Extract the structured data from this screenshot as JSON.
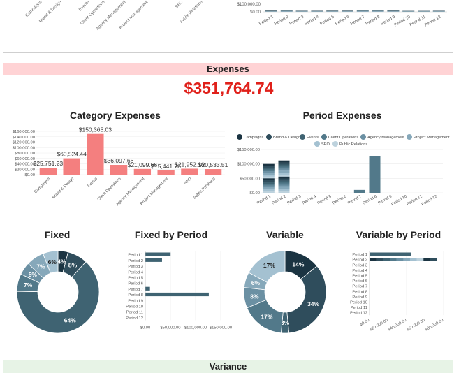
{
  "colors": {
    "expenses_band": "#ffd3d5",
    "variance_band": "#e7f3e6",
    "expense_total": "#e0201a",
    "category_bar": "#f47f7f",
    "palette": [
      "#1b3442",
      "#2f4d5c",
      "#3f6372",
      "#52798a",
      "#6b90a3",
      "#86a8ba",
      "#a4c1d1",
      "#bdd2dd"
    ]
  },
  "expenses": {
    "title": "Expenses",
    "total": "$351,764.74"
  },
  "variance": {
    "title": "Variance"
  },
  "charts": {
    "category_title": "Category Expenses",
    "period_title": "Period Expenses",
    "fixed_title": "Fixed",
    "fixed_by_period_title": "Fixed by Period",
    "variable_title": "Variable",
    "variable_by_period_title": "Variable by Period"
  },
  "chart_data": [
    {
      "id": "top-partial",
      "type": "bar",
      "stacked": true,
      "categories": [
        "Period 1",
        "Period 2",
        "Period 3",
        "Period 4",
        "Period 5",
        "Period 6",
        "Period 7",
        "Period 8",
        "Period 9",
        "Period 10",
        "Period 11",
        "Period 12"
      ],
      "totals": [
        15000,
        20000,
        13000,
        13000,
        14000,
        14000,
        20000,
        20000,
        17000,
        12000,
        12000,
        13000
      ],
      "yticks": [
        "$100,000.00",
        "$0.00"
      ],
      "xlabels_left": [
        "Campaigns",
        "Brand & Design",
        "Events",
        "Client Operations",
        "Agency Management",
        "Project Management",
        "SEO",
        "Public Relations"
      ]
    },
    {
      "id": "category-expenses",
      "type": "bar",
      "title": "Category Expenses",
      "categories": [
        "Campaigns",
        "Brand & Design",
        "Events",
        "Client Operations",
        "Agency Management",
        "Project Management",
        "SEO",
        "Public Relations"
      ],
      "values": [
        25751.23,
        60524.44,
        150365.03,
        36097.66,
        21099.66,
        15441.76,
        21952.16,
        20533.51
      ],
      "labels": [
        "$25,751.23",
        "$60,524.44",
        "$150,365.03",
        "$36,097.66",
        "$21,099.66",
        "$15,441.76",
        "$21,952.16",
        "$20,533.51"
      ],
      "ylim": [
        0,
        160000
      ],
      "yticks": [
        "$0.00",
        "$20,000.00",
        "$40,000.00",
        "$60,000.00",
        "$80,000.00",
        "$100,000.00",
        "$120,000.00",
        "$140,000.00",
        "$160,000.00"
      ]
    },
    {
      "id": "period-expenses",
      "type": "bar",
      "stacked": true,
      "title": "Period Expenses",
      "legend": [
        "Campaigns",
        "Brand & Design",
        "Events",
        "Client Operations",
        "Agency Management",
        "Project Management",
        "SEO",
        "Public Relations"
      ],
      "categories": [
        "Period 1",
        "Period 2",
        "Period 3",
        "Period 4",
        "Period 5",
        "Period 6",
        "Period 7",
        "Period 8",
        "Period 9",
        "Period 10",
        "Period 11",
        "Period 12"
      ],
      "totals": [
        100000,
        112000,
        0,
        0,
        0,
        0,
        10000,
        128000,
        0,
        0,
        0,
        0
      ],
      "ylim": [
        0,
        150000
      ],
      "yticks": [
        "$0.00",
        "$50,000.00",
        "$100,000.00",
        "$150,000.00"
      ]
    },
    {
      "id": "fixed",
      "type": "pie",
      "title": "Fixed",
      "slices": [
        4,
        8,
        64,
        7,
        5,
        7,
        6
      ],
      "labels": [
        "4%",
        "8%",
        "64%",
        "7%",
        "5%",
        "7%",
        "6%"
      ]
    },
    {
      "id": "fixed-by-period",
      "type": "bar",
      "horizontal": true,
      "title": "Fixed by Period",
      "categories": [
        "Period 1",
        "Period 2",
        "Period 3",
        "Period 4",
        "Period 5",
        "Period 6",
        "Period 7",
        "Period 8",
        "Period 9",
        "Period 10",
        "Period 11",
        "Period 12"
      ],
      "values": [
        50000,
        33000,
        0,
        0,
        0,
        0,
        9000,
        126000,
        0,
        0,
        0,
        0
      ],
      "xlim": [
        0,
        150000
      ],
      "xticks": [
        "$0.00",
        "$50,000.00",
        "$100,000.00",
        "$150,000.00"
      ]
    },
    {
      "id": "variable",
      "type": "pie",
      "title": "Variable",
      "slices": [
        14,
        34,
        3,
        17,
        8,
        6,
        17
      ],
      "labels": [
        "14%",
        "34%",
        "3%",
        "17%",
        "8%",
        "6%",
        "17%"
      ]
    },
    {
      "id": "variable-by-period",
      "type": "bar",
      "horizontal": true,
      "title": "Variable by Period",
      "categories": [
        "Period 1",
        "Period 2",
        "Period 3",
        "Period 4",
        "Period 5",
        "Period 6",
        "Period 7",
        "Period 8",
        "Period 9",
        "Period 10",
        "Period 11",
        "Period 12"
      ],
      "values": [
        50000,
        82000,
        0,
        0,
        0,
        0,
        0,
        0,
        0,
        0,
        0,
        0
      ],
      "xlim": [
        0,
        90000
      ],
      "xticks": [
        "$0.00",
        "$20,000.00",
        "$40,000.00",
        "$60,000.00",
        "$80,000.00"
      ]
    }
  ]
}
